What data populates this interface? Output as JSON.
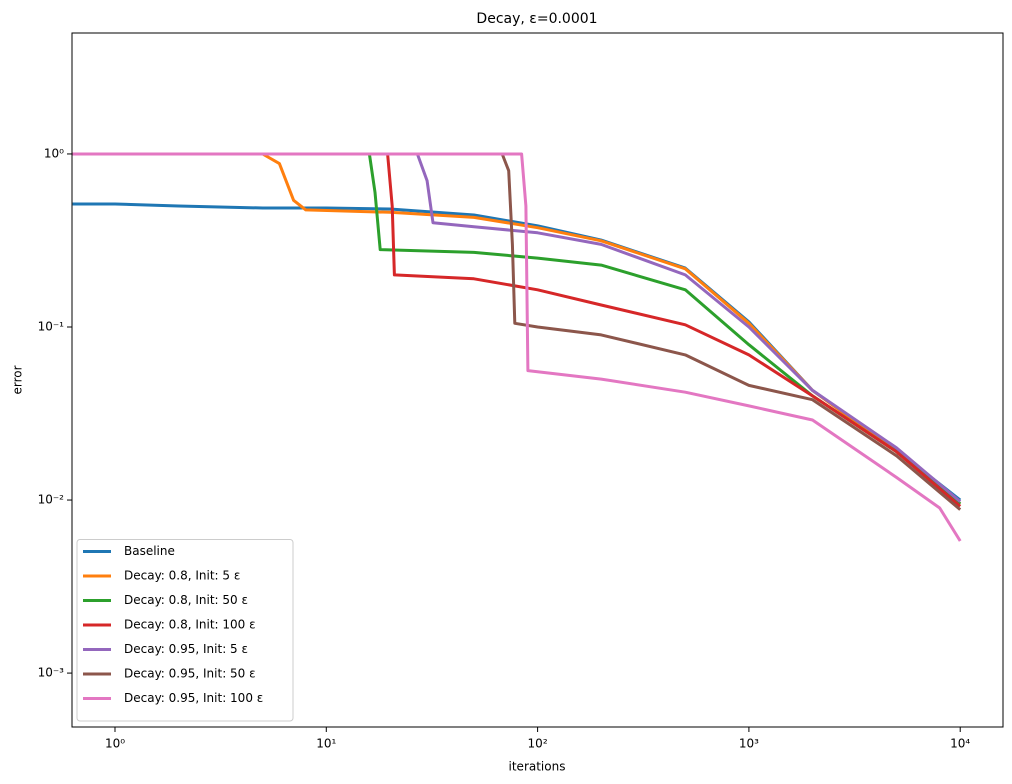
{
  "chart_data": {
    "type": "line",
    "title": "Decay, ε=0.0001",
    "x_label": "iterations",
    "y_label": "error",
    "xscale": "log",
    "yscale": "log",
    "xlim": [
      0.626,
      15940
    ],
    "ylim": [
      0.000488,
      5.0
    ],
    "xticks": [
      {
        "value": 1,
        "label": "10⁰"
      },
      {
        "value": 10,
        "label": "10¹"
      },
      {
        "value": 100,
        "label": "10²"
      },
      {
        "value": 1000,
        "label": "10³"
      },
      {
        "value": 10000,
        "label": "10⁴"
      }
    ],
    "yticks": [
      {
        "value": 0.001,
        "label": "10⁻³"
      },
      {
        "value": 0.01,
        "label": "10⁻²"
      },
      {
        "value": 0.1,
        "label": "10⁻¹"
      },
      {
        "value": 1,
        "label": "10⁰"
      }
    ],
    "legend": "lower left",
    "series": [
      {
        "name": "Baseline",
        "color": "#1f77b4",
        "x": [
          0.63,
          1,
          2,
          5,
          10,
          20,
          50,
          100,
          200,
          500,
          1000,
          2000,
          5000,
          10000
        ],
        "values": [
          0.514,
          0.514,
          0.5,
          0.487,
          0.487,
          0.481,
          0.444,
          0.384,
          0.318,
          0.219,
          0.107,
          0.043,
          0.0194,
          0.01
        ]
      },
      {
        "name": "Decay: 0.8, Init: 5 ε",
        "color": "#ff7f0e",
        "x": [
          0.63,
          5,
          6,
          7,
          8,
          20,
          50,
          100,
          200,
          500,
          1000,
          2000,
          5000,
          10000
        ],
        "values": [
          1,
          1,
          0.88,
          0.54,
          0.475,
          0.46,
          0.43,
          0.375,
          0.315,
          0.217,
          0.105,
          0.043,
          0.019,
          0.0095
        ]
      },
      {
        "name": "Decay: 0.8, Init: 50 ε",
        "color": "#2ca02c",
        "x": [
          0.63,
          16,
          17,
          18,
          50,
          100,
          200,
          500,
          1000,
          2000,
          5000,
          10000
        ],
        "values": [
          1,
          1,
          0.6,
          0.28,
          0.27,
          0.25,
          0.228,
          0.164,
          0.079,
          0.04,
          0.019,
          0.0095
        ]
      },
      {
        "name": "Decay: 0.8, Init: 100 ε",
        "color": "#d62728",
        "x": [
          0.63,
          19.5,
          20.5,
          21,
          50,
          100,
          200,
          500,
          1000,
          2000,
          5000,
          10000
        ],
        "values": [
          1,
          1,
          0.5,
          0.2,
          0.19,
          0.164,
          0.134,
          0.103,
          0.069,
          0.04,
          0.019,
          0.0092
        ]
      },
      {
        "name": "Decay: 0.95, Init: 5 ε",
        "color": "#9467bd",
        "x": [
          0.63,
          27,
          30,
          32,
          50,
          100,
          200,
          500,
          1000,
          2000,
          5000,
          10000
        ],
        "values": [
          1,
          1,
          0.7,
          0.4,
          0.38,
          0.35,
          0.3,
          0.2,
          0.1,
          0.043,
          0.02,
          0.0098
        ]
      },
      {
        "name": "Decay: 0.95, Init: 50 ε",
        "color": "#8c564b",
        "x": [
          0.63,
          68,
          73,
          76,
          78,
          100,
          200,
          500,
          1000,
          2000,
          5000,
          10000
        ],
        "values": [
          1,
          1,
          0.8,
          0.3,
          0.105,
          0.1,
          0.09,
          0.069,
          0.046,
          0.038,
          0.018,
          0.0088
        ]
      },
      {
        "name": "Decay: 0.95, Init: 100 ε",
        "color": "#e377c2",
        "x": [
          0.63,
          84,
          88,
          90,
          200,
          500,
          1000,
          2000,
          5000,
          8000,
          10000
        ],
        "values": [
          1,
          1,
          0.5,
          0.056,
          0.05,
          0.042,
          0.035,
          0.029,
          0.0135,
          0.009,
          0.0058
        ]
      }
    ]
  }
}
